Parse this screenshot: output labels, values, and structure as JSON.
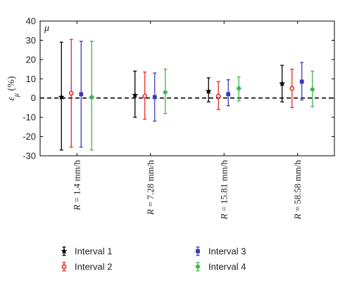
{
  "chart_data": {
    "type": "errorbar",
    "annotation": "μ",
    "ylabel": "ε_μ (%)",
    "ylim": [
      -30,
      40
    ],
    "yticks": [
      -30,
      -20,
      -10,
      0,
      10,
      20,
      30,
      40
    ],
    "categories": [
      {
        "var": "R",
        "rest": " = 1.4 mm/h"
      },
      {
        "var": "R",
        "rest": " = 7.28 mm/h"
      },
      {
        "var": "R",
        "rest": " = 15.81 mm/h"
      },
      {
        "var": "R",
        "rest": " = 58.58 mm/h"
      }
    ],
    "reference_line": 0,
    "grid": false,
    "legend_position": "bottom",
    "series": [
      {
        "name": "Interval 1",
        "color": "#000000",
        "marker": "star",
        "mean": [
          0.5,
          1.5,
          3.5,
          7.5
        ],
        "lower": [
          -27,
          -10,
          -2,
          -2
        ],
        "upper": [
          29,
          14,
          10.5,
          17
        ]
      },
      {
        "name": "Interval 2",
        "color": "#e8251c",
        "marker": "circle",
        "mean": [
          2.5,
          1,
          1,
          5
        ],
        "lower": [
          -25.5,
          -11,
          -6,
          -5
        ],
        "upper": [
          30.5,
          13.5,
          8.5,
          15
        ]
      },
      {
        "name": "Interval 3",
        "color": "#3b3bb5",
        "marker": "square",
        "mean": [
          2,
          0.5,
          2,
          8.5
        ],
        "lower": [
          -25.5,
          -12,
          -4,
          -1
        ],
        "upper": [
          29.5,
          13,
          9.5,
          18.5
        ]
      },
      {
        "name": "Interval 4",
        "color": "#3cb54a",
        "marker": "diamond",
        "mean": [
          0.5,
          3,
          5,
          4.5
        ],
        "lower": [
          -27,
          -8,
          -1.5,
          -4.5
        ],
        "upper": [
          29.5,
          15,
          11,
          14
        ]
      }
    ]
  }
}
